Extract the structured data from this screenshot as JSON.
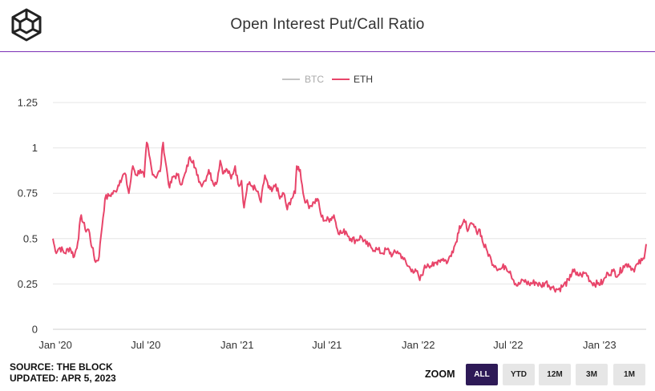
{
  "header": {
    "title": "Open Interest Put/Call Ratio"
  },
  "legend": {
    "items": [
      {
        "name": "BTC",
        "color": "#c4c4c4",
        "active": false
      },
      {
        "name": "ETH",
        "color": "#e8456a",
        "active": true
      }
    ]
  },
  "footer": {
    "source": "SOURCE: THE BLOCK",
    "updated": "UPDATED: APR 5, 2023"
  },
  "zoom": {
    "label": "ZOOM",
    "buttons": [
      "ALL",
      "YTD",
      "12M",
      "3M",
      "1M"
    ],
    "selected": "ALL"
  },
  "colors": {
    "accent": "#7b2fb5",
    "eth": "#e8456a",
    "btc": "#c4c4c4",
    "zoom_active": "#2e1a57"
  },
  "chart_data": {
    "type": "line",
    "title": "Open Interest Put/Call Ratio",
    "xlabel": "",
    "ylabel": "",
    "ylim": [
      0,
      1.25
    ],
    "yticks": [
      "0",
      "0.25",
      "0.5",
      "0.75",
      "1",
      "1.25"
    ],
    "xtick_labels": [
      "Jan '20",
      "Jul '20",
      "Jan '21",
      "Jul '21",
      "Jan '22",
      "Jul '22",
      "Jan '23"
    ],
    "xtick_dates": [
      "2020-01-01",
      "2020-07-01",
      "2021-01-01",
      "2021-07-01",
      "2022-01-01",
      "2022-07-01",
      "2023-01-01"
    ],
    "x_range": [
      "2019-12-27",
      "2023-04-05"
    ],
    "grid": true,
    "legend_position": "top-center",
    "series": [
      {
        "name": "ETH",
        "color": "#e8456a",
        "points": [
          [
            "2019-12-27",
            0.5
          ],
          [
            "2020-01-01",
            0.43
          ],
          [
            "2020-01-10",
            0.45
          ],
          [
            "2020-01-20",
            0.42
          ],
          [
            "2020-01-30",
            0.45
          ],
          [
            "2020-02-08",
            0.4
          ],
          [
            "2020-02-15",
            0.48
          ],
          [
            "2020-02-22",
            0.63
          ],
          [
            "2020-03-01",
            0.55
          ],
          [
            "2020-03-08",
            0.55
          ],
          [
            "2020-03-15",
            0.45
          ],
          [
            "2020-03-22",
            0.37
          ],
          [
            "2020-03-29",
            0.4
          ],
          [
            "2020-04-02",
            0.52
          ],
          [
            "2020-04-10",
            0.72
          ],
          [
            "2020-04-20",
            0.74
          ],
          [
            "2020-05-01",
            0.76
          ],
          [
            "2020-05-10",
            0.82
          ],
          [
            "2020-05-20",
            0.86
          ],
          [
            "2020-05-28",
            0.75
          ],
          [
            "2020-06-05",
            0.9
          ],
          [
            "2020-06-12",
            0.85
          ],
          [
            "2020-06-20",
            0.88
          ],
          [
            "2020-06-28",
            0.84
          ],
          [
            "2020-07-03",
            1.03
          ],
          [
            "2020-07-08",
            0.96
          ],
          [
            "2020-07-13",
            0.88
          ],
          [
            "2020-07-20",
            0.84
          ],
          [
            "2020-07-30",
            0.87
          ],
          [
            "2020-08-05",
            1.03
          ],
          [
            "2020-08-10",
            0.92
          ],
          [
            "2020-08-18",
            0.78
          ],
          [
            "2020-08-25",
            0.84
          ],
          [
            "2020-09-03",
            0.85
          ],
          [
            "2020-09-12",
            0.8
          ],
          [
            "2020-09-20",
            0.87
          ],
          [
            "2020-09-28",
            0.95
          ],
          [
            "2020-10-05",
            0.93
          ],
          [
            "2020-10-12",
            0.85
          ],
          [
            "2020-10-20",
            0.8
          ],
          [
            "2020-10-28",
            0.82
          ],
          [
            "2020-11-05",
            0.88
          ],
          [
            "2020-11-12",
            0.82
          ],
          [
            "2020-11-20",
            0.8
          ],
          [
            "2020-11-28",
            0.93
          ],
          [
            "2020-12-05",
            0.86
          ],
          [
            "2020-12-12",
            0.88
          ],
          [
            "2020-12-20",
            0.83
          ],
          [
            "2020-12-28",
            0.9
          ],
          [
            "2021-01-03",
            0.8
          ],
          [
            "2021-01-10",
            0.82
          ],
          [
            "2021-01-15",
            0.67
          ],
          [
            "2021-01-22",
            0.8
          ],
          [
            "2021-02-01",
            0.79
          ],
          [
            "2021-02-10",
            0.76
          ],
          [
            "2021-02-18",
            0.7
          ],
          [
            "2021-02-26",
            0.85
          ],
          [
            "2021-03-05",
            0.78
          ],
          [
            "2021-03-12",
            0.76
          ],
          [
            "2021-03-20",
            0.8
          ],
          [
            "2021-03-28",
            0.72
          ],
          [
            "2021-04-05",
            0.75
          ],
          [
            "2021-04-12",
            0.66
          ],
          [
            "2021-04-20",
            0.72
          ],
          [
            "2021-04-28",
            0.75
          ],
          [
            "2021-05-01",
            0.9
          ],
          [
            "2021-05-08",
            0.88
          ],
          [
            "2021-05-14",
            0.75
          ],
          [
            "2021-05-20",
            0.7
          ],
          [
            "2021-05-28",
            0.68
          ],
          [
            "2021-06-05",
            0.7
          ],
          [
            "2021-06-12",
            0.72
          ],
          [
            "2021-06-20",
            0.62
          ],
          [
            "2021-06-28",
            0.6
          ],
          [
            "2021-07-08",
            0.61
          ],
          [
            "2021-07-15",
            0.63
          ],
          [
            "2021-07-22",
            0.55
          ],
          [
            "2021-07-30",
            0.53
          ],
          [
            "2021-08-08",
            0.54
          ],
          [
            "2021-08-18",
            0.5
          ],
          [
            "2021-08-28",
            0.49
          ],
          [
            "2021-09-08",
            0.51
          ],
          [
            "2021-09-18",
            0.47
          ],
          [
            "2021-09-28",
            0.45
          ],
          [
            "2021-10-10",
            0.44
          ],
          [
            "2021-10-20",
            0.42
          ],
          [
            "2021-10-30",
            0.44
          ],
          [
            "2021-11-10",
            0.41
          ],
          [
            "2021-11-20",
            0.43
          ],
          [
            "2021-11-30",
            0.4
          ],
          [
            "2021-12-10",
            0.35
          ],
          [
            "2021-12-20",
            0.33
          ],
          [
            "2022-01-01",
            0.3
          ],
          [
            "2022-01-04",
            0.27
          ],
          [
            "2022-01-12",
            0.33
          ],
          [
            "2022-01-20",
            0.36
          ],
          [
            "2022-02-01",
            0.35
          ],
          [
            "2022-02-10",
            0.38
          ],
          [
            "2022-02-20",
            0.39
          ],
          [
            "2022-03-01",
            0.37
          ],
          [
            "2022-03-10",
            0.43
          ],
          [
            "2022-03-18",
            0.48
          ],
          [
            "2022-03-25",
            0.57
          ],
          [
            "2022-04-05",
            0.59
          ],
          [
            "2022-04-12",
            0.55
          ],
          [
            "2022-04-20",
            0.58
          ],
          [
            "2022-04-28",
            0.54
          ],
          [
            "2022-05-05",
            0.55
          ],
          [
            "2022-05-12",
            0.47
          ],
          [
            "2022-05-20",
            0.43
          ],
          [
            "2022-05-28",
            0.38
          ],
          [
            "2022-06-05",
            0.35
          ],
          [
            "2022-06-15",
            0.33
          ],
          [
            "2022-06-25",
            0.35
          ],
          [
            "2022-07-05",
            0.32
          ],
          [
            "2022-07-12",
            0.27
          ],
          [
            "2022-07-20",
            0.24
          ],
          [
            "2022-08-01",
            0.27
          ],
          [
            "2022-08-12",
            0.25
          ],
          [
            "2022-08-25",
            0.26
          ],
          [
            "2022-09-05",
            0.24
          ],
          [
            "2022-09-15",
            0.26
          ],
          [
            "2022-09-28",
            0.23
          ],
          [
            "2022-10-10",
            0.22
          ],
          [
            "2022-10-20",
            0.24
          ],
          [
            "2022-11-01",
            0.27
          ],
          [
            "2022-11-08",
            0.33
          ],
          [
            "2022-11-15",
            0.3
          ],
          [
            "2022-11-25",
            0.3
          ],
          [
            "2022-12-05",
            0.31
          ],
          [
            "2022-12-15",
            0.26
          ],
          [
            "2022-12-28",
            0.25
          ],
          [
            "2023-01-08",
            0.26
          ],
          [
            "2023-01-18",
            0.31
          ],
          [
            "2023-01-28",
            0.32
          ],
          [
            "2023-02-08",
            0.3
          ],
          [
            "2023-02-18",
            0.35
          ],
          [
            "2023-02-28",
            0.36
          ],
          [
            "2023-03-10",
            0.33
          ],
          [
            "2023-03-20",
            0.36
          ],
          [
            "2023-03-28",
            0.38
          ],
          [
            "2023-04-01",
            0.39
          ],
          [
            "2023-04-03",
            0.43
          ],
          [
            "2023-04-05",
            0.47
          ]
        ]
      }
    ]
  }
}
